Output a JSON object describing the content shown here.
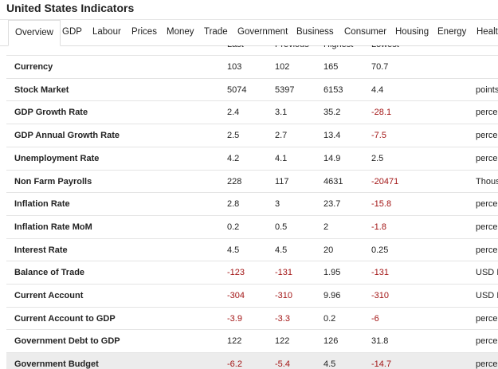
{
  "header": {
    "title": "United States Indicators"
  },
  "tabs": [
    "Overview",
    "GDP",
    "Labour",
    "Prices",
    "Money",
    "Trade",
    "Government",
    "Business",
    "Consumer",
    "Housing",
    "Energy",
    "Healt"
  ],
  "table": {
    "columns": [
      "Last",
      "Previous",
      "Highest",
      "Lowest"
    ],
    "rows": [
      [
        "Currency",
        103,
        102,
        165,
        70.7,
        ""
      ],
      [
        "Stock Market",
        5074,
        5397,
        6153,
        4.4,
        "points"
      ],
      [
        "GDP Growth Rate",
        2.4,
        3.1,
        35.2,
        -28.1,
        "perce"
      ],
      [
        "GDP Annual Growth Rate",
        2.5,
        2.7,
        13.4,
        -7.5,
        "perce"
      ],
      [
        "Unemployment Rate",
        4.2,
        4.1,
        14.9,
        2.5,
        "perce"
      ],
      [
        "Non Farm Payrolls",
        228,
        117,
        4631,
        -20471,
        "Thous"
      ],
      [
        "Inflation Rate",
        2.8,
        3,
        23.7,
        -15.8,
        "perce"
      ],
      [
        "Inflation Rate MoM",
        0.2,
        0.5,
        2,
        -1.8,
        "perce"
      ],
      [
        "Interest Rate",
        4.5,
        4.5,
        20,
        0.25,
        "perce"
      ],
      [
        "Balance of Trade",
        -123,
        -131,
        1.95,
        -131,
        "USD I"
      ],
      [
        "Current Account",
        -304,
        -310,
        9.96,
        -310,
        "USD I"
      ],
      [
        "Current Account to GDP",
        -3.9,
        -3.3,
        0.2,
        -6,
        "perce"
      ],
      [
        "Government Debt to GDP",
        122,
        122,
        126,
        31.8,
        "perce"
      ],
      [
        "Government Budget",
        -6.2,
        -5.4,
        4.5,
        -14.7,
        "perce"
      ]
    ]
  }
}
